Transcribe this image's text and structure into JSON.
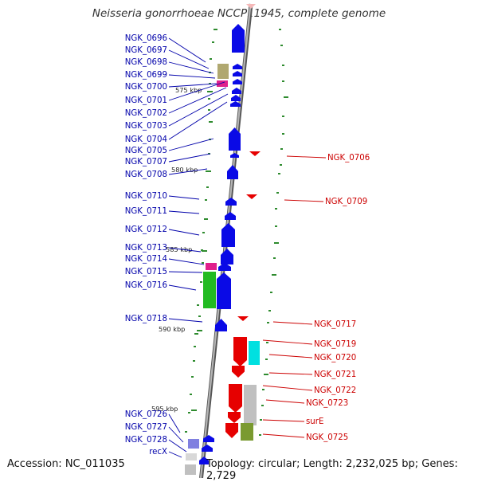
{
  "title": "Neisseria gonorrhoeae NCCP11945, complete genome",
  "footer": {
    "accession": "Accession: NC_011035",
    "summary": "Topology: circular; Length: 2,232,025 bp; Genes: 2,729"
  },
  "colors": {
    "forward_gene": "#0a0ae6",
    "reverse_gene": "#e60000",
    "forward_label": "#0000aa",
    "reverse_label": "#cc0000",
    "backbone": "#8c8c8c",
    "gc_tick": "#2e8b2e",
    "cog_olive": "#b0a870",
    "cog_magenta": "#e0208c",
    "cog_green": "#22bb22",
    "cog_lavender": "#8080e0",
    "cog_cyan": "#00e0e0",
    "cog_gray": "#c0c0c0",
    "cog_darkolive": "#7a9a30"
  },
  "kbp_markers": [
    {
      "label": "575 kbp"
    },
    {
      "label": "580 kbp"
    },
    {
      "label": "585 kbp"
    },
    {
      "label": "590 kbp"
    },
    {
      "label": "595 kbp"
    }
  ],
  "forward_genes": [
    {
      "label": "NGK_0696"
    },
    {
      "label": "NGK_0697"
    },
    {
      "label": "NGK_0698"
    },
    {
      "label": "NGK_0699"
    },
    {
      "label": "NGK_0700"
    },
    {
      "label": "NGK_0701"
    },
    {
      "label": "NGK_0702"
    },
    {
      "label": "NGK_0703"
    },
    {
      "label": "NGK_0704"
    },
    {
      "label": "NGK_0705"
    },
    {
      "label": "NGK_0707"
    },
    {
      "label": "NGK_0708"
    },
    {
      "label": "NGK_0710"
    },
    {
      "label": "NGK_0711"
    },
    {
      "label": "NGK_0712"
    },
    {
      "label": "NGK_0713"
    },
    {
      "label": "NGK_0714"
    },
    {
      "label": "NGK_0715"
    },
    {
      "label": "NGK_0716"
    },
    {
      "label": "NGK_0718"
    },
    {
      "label": "NGK_0726"
    },
    {
      "label": "NGK_0727"
    },
    {
      "label": "NGK_0728"
    },
    {
      "label": "recX"
    }
  ],
  "reverse_genes": [
    {
      "label": "NGK_0706"
    },
    {
      "label": "NGK_0709"
    },
    {
      "label": "NGK_0717"
    },
    {
      "label": "NGK_0719"
    },
    {
      "label": "NGK_0720"
    },
    {
      "label": "NGK_0721"
    },
    {
      "label": "NGK_0722"
    },
    {
      "label": "NGK_0723"
    },
    {
      "label": "surE"
    },
    {
      "label": "NGK_0725"
    }
  ]
}
